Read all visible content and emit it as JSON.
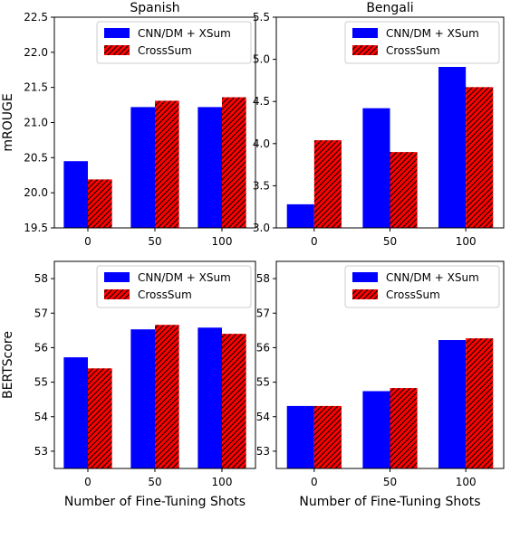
{
  "legend_series": [
    "CNN/DM + XSum",
    "CrossSum"
  ],
  "colors": {
    "cnn": "#0000ff",
    "cross": "#ff0000",
    "hatch": "#000000"
  },
  "chart_data": [
    {
      "type": "bar",
      "title": "Spanish",
      "ylabel": "mROUGE",
      "xlabel": "",
      "categories": [
        "0",
        "50",
        "100"
      ],
      "ylim": [
        19.5,
        22.5
      ],
      "yticks": [
        "19.5",
        "20.0",
        "20.5",
        "21.0",
        "21.5",
        "22.0",
        "22.5"
      ],
      "legend": "top-right",
      "grid": false,
      "series": [
        {
          "name": "CNN/DM + XSum",
          "values": [
            20.45,
            21.22,
            21.22
          ]
        },
        {
          "name": "CrossSum",
          "values": [
            20.19,
            21.31,
            21.36
          ]
        }
      ]
    },
    {
      "type": "bar",
      "title": "Bengali",
      "ylabel": "",
      "xlabel": "",
      "categories": [
        "0",
        "50",
        "100"
      ],
      "ylim": [
        3.0,
        5.5
      ],
      "yticks": [
        "3.0",
        "3.5",
        "4.0",
        "4.5",
        "5.0",
        "5.5"
      ],
      "legend": "top-right",
      "grid": false,
      "series": [
        {
          "name": "CNN/DM + XSum",
          "values": [
            3.28,
            4.42,
            4.91
          ]
        },
        {
          "name": "CrossSum",
          "values": [
            4.04,
            3.9,
            4.67
          ]
        }
      ]
    },
    {
      "type": "bar",
      "title": "",
      "ylabel": "BERTScore",
      "xlabel": "Number of Fine-Tuning Shots",
      "categories": [
        "0",
        "50",
        "100"
      ],
      "ylim": [
        52.5,
        58.5
      ],
      "yticks": [
        "53",
        "54",
        "55",
        "56",
        "57",
        "58"
      ],
      "legend": "top-right",
      "grid": false,
      "series": [
        {
          "name": "CNN/DM + XSum",
          "values": [
            55.72,
            56.53,
            56.58
          ]
        },
        {
          "name": "CrossSum",
          "values": [
            55.4,
            56.66,
            56.4
          ]
        }
      ]
    },
    {
      "type": "bar",
      "title": "",
      "ylabel": "",
      "xlabel": "Number of Fine-Tuning Shots",
      "categories": [
        "0",
        "50",
        "100"
      ],
      "ylim": [
        52.5,
        58.5
      ],
      "yticks": [
        "53",
        "54",
        "55",
        "56",
        "57",
        "58"
      ],
      "legend": "top-right",
      "grid": false,
      "series": [
        {
          "name": "CNN/DM + XSum",
          "values": [
            54.31,
            54.74,
            56.22
          ]
        },
        {
          "name": "CrossSum",
          "values": [
            54.31,
            54.83,
            56.27
          ]
        }
      ]
    }
  ]
}
